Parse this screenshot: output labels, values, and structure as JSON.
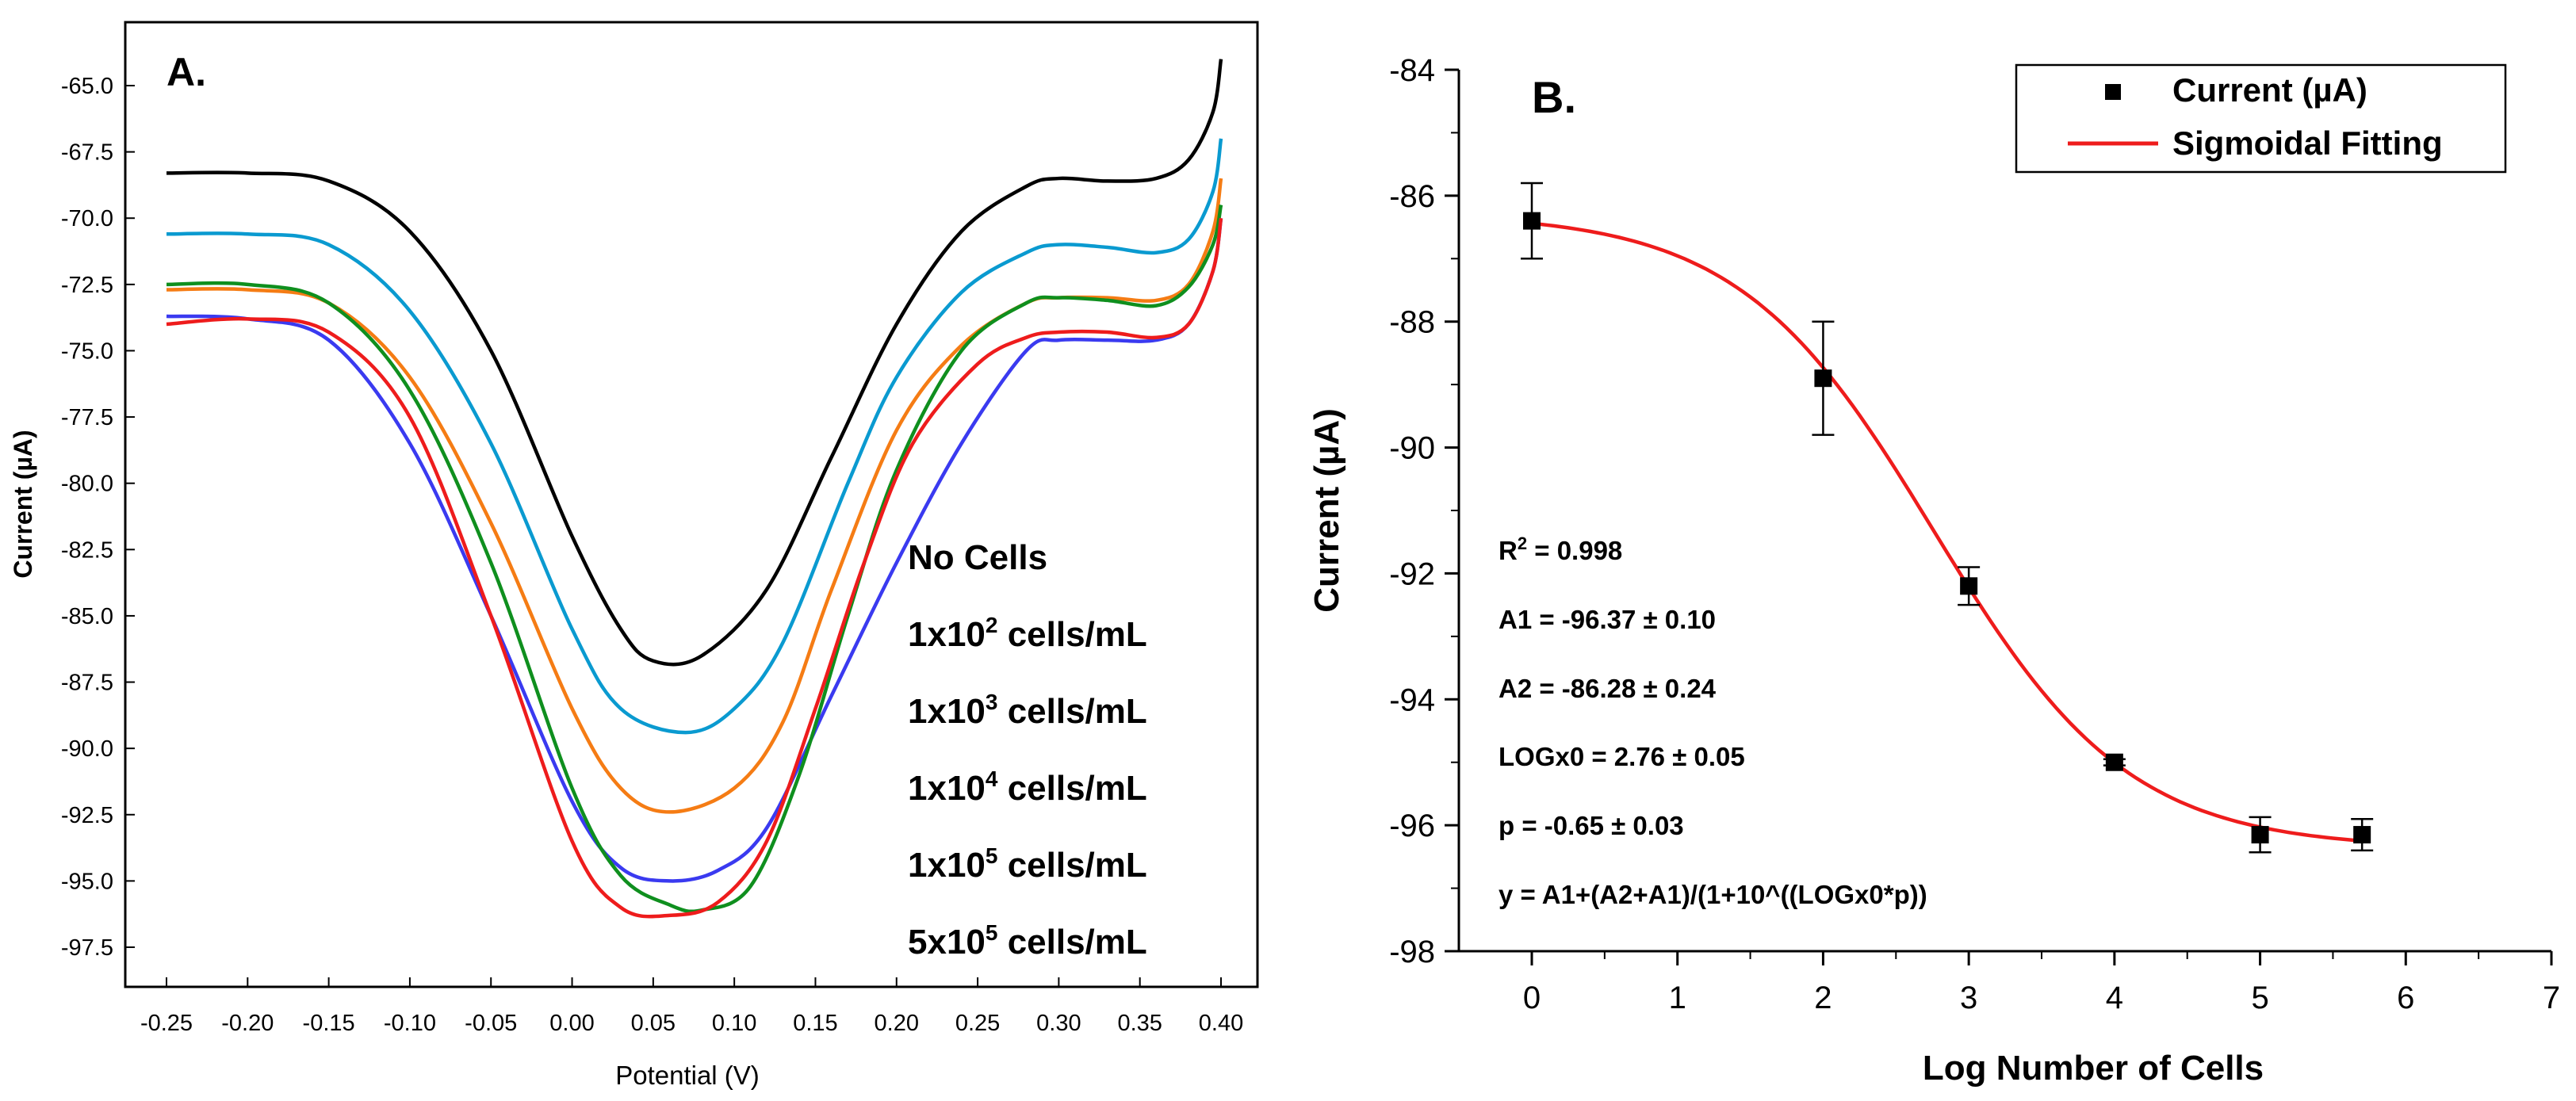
{
  "chart_data": [
    {
      "type": "line",
      "panel_label": "A.",
      "title": "",
      "xlabel": "Potential (V)",
      "ylabel": "Current (µA)",
      "xlim": [
        -0.3,
        0.42
      ],
      "ylim": [
        -98.5,
        -63.5
      ],
      "xticks": [
        "-0.25",
        "-0.20",
        "-0.15",
        "-0.10",
        "-0.05",
        "0.00",
        "0.05",
        "0.10",
        "0.15",
        "0.20",
        "0.25",
        "0.30",
        "0.35",
        "0.40"
      ],
      "yticks": [
        "-65.0",
        "-67.5",
        "-70.0",
        "-72.5",
        "-75.0",
        "-77.5",
        "-80.0",
        "-82.5",
        "-85.0",
        "-87.5",
        "-90.0",
        "-92.5",
        "-95.0",
        "-97.5"
      ],
      "legend_position": "right",
      "series": [
        {
          "name": "No Cells",
          "base": "No Cells",
          "sup": "",
          "suffix": "",
          "color": "#000000",
          "x": [
            -0.25,
            -0.2,
            -0.15,
            -0.1,
            -0.05,
            0.0,
            0.03,
            0.05,
            0.08,
            0.12,
            0.16,
            0.2,
            0.24,
            0.28,
            0.3,
            0.33,
            0.36,
            0.38,
            0.395,
            0.4
          ],
          "y": [
            -68.3,
            -68.3,
            -68.6,
            -70.5,
            -75.0,
            -82.0,
            -85.5,
            -86.7,
            -86.5,
            -84.0,
            -79.0,
            -74.0,
            -70.5,
            -68.8,
            -68.5,
            -68.6,
            -68.5,
            -67.8,
            -66.0,
            -64.0
          ]
        },
        {
          "name": "1x10^2 cells/mL",
          "base": "1x10",
          "sup": "2",
          "suffix": " cells/mL",
          "color": "#0a9ad0",
          "x": [
            -0.25,
            -0.2,
            -0.15,
            -0.1,
            -0.05,
            0.0,
            0.03,
            0.07,
            0.1,
            0.13,
            0.17,
            0.2,
            0.24,
            0.28,
            0.3,
            0.33,
            0.36,
            0.38,
            0.395,
            0.4
          ],
          "y": [
            -70.6,
            -70.6,
            -71.0,
            -73.5,
            -78.5,
            -85.5,
            -88.5,
            -89.4,
            -88.5,
            -86.0,
            -80.0,
            -76.0,
            -72.8,
            -71.3,
            -71.0,
            -71.1,
            -71.3,
            -70.8,
            -69.0,
            -67.0
          ]
        },
        {
          "name": "1x10^3 cells/mL",
          "base": "1x10",
          "sup": "3",
          "suffix": " cells/mL",
          "color": "#f57c14",
          "x": [
            -0.25,
            -0.2,
            -0.15,
            -0.1,
            -0.05,
            0.0,
            0.03,
            0.06,
            0.1,
            0.13,
            0.16,
            0.2,
            0.24,
            0.28,
            0.3,
            0.33,
            0.36,
            0.38,
            0.395,
            0.4
          ],
          "y": [
            -72.7,
            -72.7,
            -73.2,
            -76.0,
            -81.5,
            -88.5,
            -91.5,
            -92.4,
            -91.5,
            -89.0,
            -84.0,
            -78.0,
            -74.8,
            -73.2,
            -73.0,
            -73.0,
            -73.1,
            -72.5,
            -70.5,
            -68.5
          ]
        },
        {
          "name": "1x10^4 cells/mL",
          "base": "1x10",
          "sup": "4",
          "suffix": " cells/mL",
          "color": "#3a3af0",
          "x": [
            -0.25,
            -0.2,
            -0.15,
            -0.1,
            -0.05,
            0.0,
            0.03,
            0.06,
            0.09,
            0.12,
            0.16,
            0.2,
            0.24,
            0.28,
            0.3,
            0.33,
            0.36,
            0.38,
            0.395,
            0.4
          ],
          "y": [
            -73.7,
            -73.8,
            -74.6,
            -78.5,
            -85.0,
            -92.0,
            -94.5,
            -95.0,
            -94.6,
            -93.0,
            -88.0,
            -83.0,
            -78.5,
            -75.0,
            -74.6,
            -74.6,
            -74.6,
            -74.0,
            -72.0,
            -70.0
          ]
        },
        {
          "name": "1x10^5 cells/mL",
          "base": "1x10",
          "sup": "5",
          "suffix": " cells/mL",
          "color": "#0f8f1e",
          "x": [
            -0.25,
            -0.2,
            -0.15,
            -0.1,
            -0.05,
            0.0,
            0.03,
            0.06,
            0.08,
            0.11,
            0.14,
            0.17,
            0.2,
            0.24,
            0.28,
            0.3,
            0.33,
            0.36,
            0.38,
            0.395,
            0.4
          ],
          "y": [
            -72.5,
            -72.5,
            -73.2,
            -76.5,
            -83.0,
            -91.5,
            -94.8,
            -95.9,
            -96.1,
            -95.2,
            -91.0,
            -85.0,
            -79.5,
            -75.0,
            -73.2,
            -73.0,
            -73.1,
            -73.3,
            -72.6,
            -71.0,
            -69.5
          ]
        },
        {
          "name": "5x10^5 cells/mL",
          "base": "5x10",
          "sup": "5",
          "suffix": " cells/mL",
          "color": "#ee1c1c",
          "x": [
            -0.25,
            -0.2,
            -0.15,
            -0.1,
            -0.05,
            0.0,
            0.03,
            0.06,
            0.09,
            0.12,
            0.15,
            0.18,
            0.21,
            0.25,
            0.28,
            0.3,
            0.33,
            0.36,
            0.38,
            0.395,
            0.4
          ],
          "y": [
            -74.0,
            -73.8,
            -74.3,
            -77.5,
            -85.0,
            -93.5,
            -96.0,
            -96.3,
            -95.8,
            -93.5,
            -88.5,
            -83.0,
            -78.5,
            -75.5,
            -74.5,
            -74.3,
            -74.3,
            -74.5,
            -74.0,
            -72.0,
            -70.0
          ]
        }
      ]
    },
    {
      "type": "scatter",
      "panel_label": "B.",
      "title": "",
      "xlabel": "Log Number of Cells",
      "ylabel": "Current (µA)",
      "xlim": [
        -0.7,
        7
      ],
      "ylim": [
        -98,
        -84
      ],
      "xticks": [
        "0",
        "1",
        "2",
        "3",
        "4",
        "5",
        "6",
        "7"
      ],
      "yticks": [
        "-84",
        "-86",
        "-88",
        "-90",
        "-92",
        "-94",
        "-96",
        "-98"
      ],
      "legend_position": "top-right",
      "legend": [
        {
          "label": "Current (µA)",
          "kind": "square-marker",
          "color": "#000000"
        },
        {
          "label": "Sigmoidal Fitting",
          "kind": "line",
          "color": "#ee1c1c"
        }
      ],
      "points": {
        "x": [
          0,
          2,
          3,
          4,
          5,
          5.7
        ],
        "y": [
          -86.4,
          -88.9,
          -92.2,
          -95.0,
          -96.15,
          -96.15
        ],
        "error": [
          0.6,
          0.9,
          0.3,
          0.05,
          0.28,
          0.25
        ]
      },
      "fit": {
        "A1": -96.37,
        "A2": -86.28,
        "LOGx0": 2.76,
        "p": -0.65,
        "x_range": [
          0,
          5.7
        ],
        "color": "#ee1c1c"
      },
      "annotations": {
        "r2_base": "R",
        "r2_sup": "2",
        "r2_value": " = 0.998",
        "a1": "A1 = -96.37 ± 0.10",
        "a2": "A2 = -86.28 ± 0.24",
        "logx0": "LOGx0 = 2.76 ± 0.05",
        "p": "p = -0.65 ± 0.03",
        "equation": "y = A1+(A2+A1)/(1+10^((LOGx0*p))"
      }
    }
  ]
}
